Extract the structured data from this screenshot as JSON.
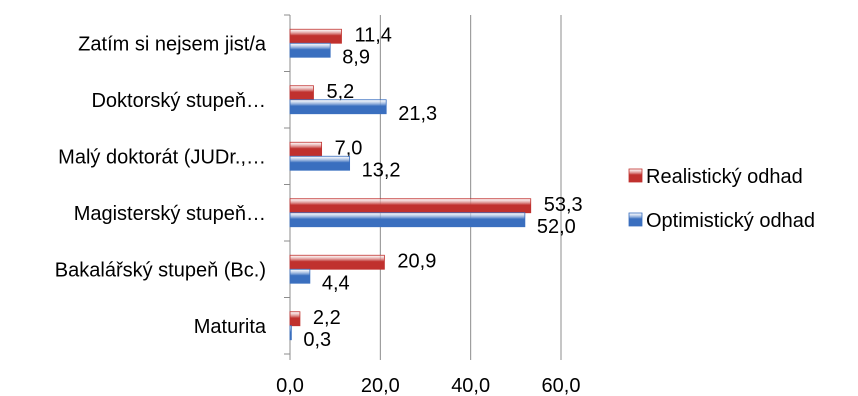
{
  "chart_data": {
    "type": "bar",
    "orientation": "horizontal",
    "categories": [
      "Zatím si nejsem jist/a",
      "Doktorský stupeň…",
      "Malý doktorát (JUDr.,…",
      "Magisterský stupeň…",
      "Bakalářský stupeň (Bc.)",
      "Maturita"
    ],
    "series": [
      {
        "name": "Realistický odhad",
        "color": "#c0312e",
        "values": [
          11.4,
          5.2,
          7.0,
          53.3,
          20.9,
          2.2
        ],
        "labels": [
          "11,4",
          "5,2",
          "7,0",
          "53,3",
          "20,9",
          "2,2"
        ]
      },
      {
        "name": "Optimistický odhad",
        "color": "#3a6fbf",
        "values": [
          8.9,
          21.3,
          13.2,
          52.0,
          4.4,
          0.3
        ],
        "labels": [
          "8,9",
          "21,3",
          "13,2",
          "52,0",
          "4,4",
          "0,3"
        ]
      }
    ],
    "xlim": [
      0,
      60
    ],
    "xticks": [
      0,
      20,
      40,
      60
    ],
    "xtick_labels": [
      "0,0",
      "20,0",
      "40,0",
      "60,0"
    ],
    "grid": true,
    "legend_position": "right",
    "title": "",
    "xlabel": "",
    "ylabel": ""
  }
}
